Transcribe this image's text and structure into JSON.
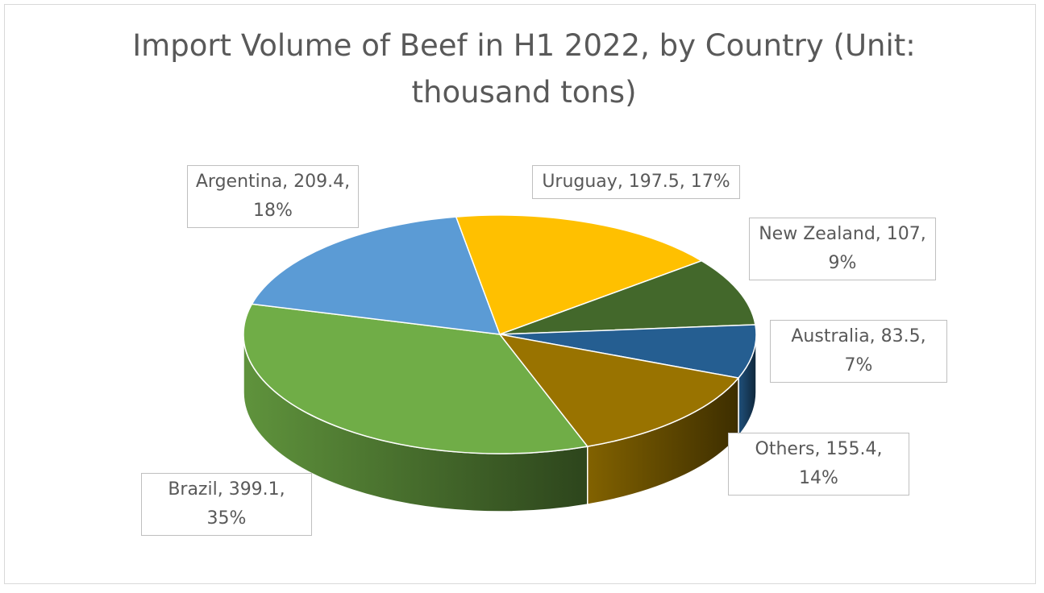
{
  "chart_data": {
    "type": "pie3d",
    "title": "Import Volume of Beef in H1 2022, by Country (Unit: thousand tons)",
    "values": [
      399.1,
      209.4,
      197.5,
      107,
      83.5,
      155.4
    ],
    "value_labels": [
      "Brazil, 399.1, 35%",
      "Argentina, 209.4, 18%",
      "Uruguay, 197.5, 17%",
      "New Zealand, 107, 9%",
      "Australia, 83.5, 7%",
      "Others, 155.4, 14%"
    ],
    "colors": [
      "#70ad47",
      "#5b9bd5",
      "#ffc000",
      "#43682b",
      "#255e91",
      "#997300"
    ]
  }
}
